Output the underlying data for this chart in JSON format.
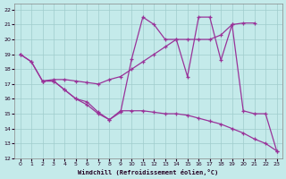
{
  "xlabel": "Windchill (Refroidissement éolien,°C)",
  "bg_color": "#c4eaea",
  "grid_color": "#a0cccc",
  "line_color": "#993399",
  "ylim": [
    12,
    22.4
  ],
  "xlim": [
    -0.5,
    23.5
  ],
  "yticks": [
    12,
    13,
    14,
    15,
    16,
    17,
    18,
    19,
    20,
    21,
    22
  ],
  "xticks": [
    0,
    1,
    2,
    3,
    4,
    5,
    6,
    7,
    8,
    9,
    10,
    11,
    12,
    13,
    14,
    15,
    16,
    17,
    18,
    19,
    20,
    21,
    22,
    23
  ],
  "line1_x": [
    0,
    1,
    2,
    3,
    4,
    5,
    6,
    7,
    8,
    9,
    10,
    11,
    12,
    13,
    14,
    15,
    16,
    17,
    18,
    19,
    20,
    21,
    22,
    23
  ],
  "line1_y": [
    19.0,
    18.5,
    17.2,
    17.2,
    16.6,
    16.0,
    15.8,
    15.1,
    14.6,
    15.2,
    15.2,
    15.2,
    15.1,
    15.0,
    15.0,
    14.9,
    14.7,
    14.5,
    14.3,
    14.0,
    13.7,
    13.3,
    13.0,
    12.5
  ],
  "line2_x": [
    0,
    1,
    2,
    3,
    4,
    5,
    6,
    7,
    8,
    9,
    10,
    11,
    12,
    13,
    14,
    15,
    16,
    17,
    18,
    19,
    20,
    21
  ],
  "line2_y": [
    19.0,
    18.5,
    17.2,
    17.3,
    17.3,
    17.2,
    17.1,
    17.0,
    17.3,
    17.5,
    18.0,
    18.5,
    19.0,
    19.5,
    20.0,
    20.0,
    20.0,
    20.0,
    20.3,
    21.0,
    21.1,
    21.1
  ],
  "line3_x": [
    2,
    3,
    4,
    5,
    6,
    7,
    8,
    9,
    10,
    11,
    12,
    13,
    14,
    15,
    16,
    17,
    18,
    19,
    20,
    21,
    22,
    23
  ],
  "line3_y": [
    17.2,
    17.2,
    16.6,
    16.0,
    15.6,
    15.0,
    14.6,
    15.1,
    18.7,
    21.5,
    21.0,
    20.0,
    20.0,
    17.5,
    21.5,
    21.5,
    18.6,
    21.0,
    15.2,
    15.0,
    15.0,
    12.5
  ]
}
